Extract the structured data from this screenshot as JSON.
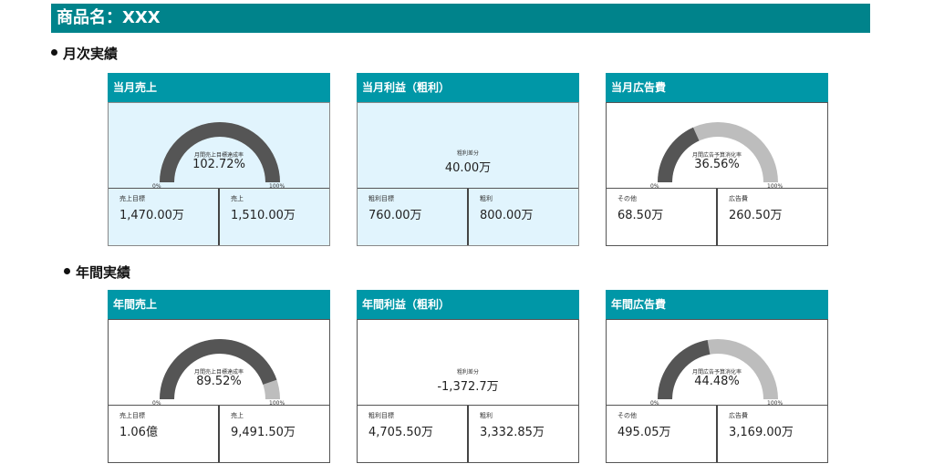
{
  "header": {
    "title": "商品名：XXX"
  },
  "sections": {
    "monthly": "月次実績",
    "annual": "年間実績"
  },
  "colors": {
    "title_bar": "#00838b",
    "card_header": "#0097a7",
    "gauge_fill": "#555555",
    "gauge_track": "#bdbdbd",
    "shaded_panel": "#e1f4fd"
  },
  "cards": {
    "monthly_sales": {
      "title": "当月売上",
      "gauge": {
        "caption": "月間売上目標達成率",
        "value": "102.72%",
        "ratio": 1.0,
        "min_label": "0%",
        "max_label": "100%"
      },
      "cells": [
        {
          "label": "売上目標",
          "value": "1,470.00万"
        },
        {
          "label": "売上",
          "value": "1,510.00万"
        }
      ]
    },
    "monthly_profit": {
      "title": "当月利益（粗利）",
      "summary": {
        "caption": "粗利差分",
        "value": "40.00万"
      },
      "cells": [
        {
          "label": "粗利目標",
          "value": "760.00万"
        },
        {
          "label": "粗利",
          "value": "800.00万"
        }
      ]
    },
    "monthly_ads": {
      "title": "当月広告費",
      "gauge": {
        "caption": "月間広告予算消化率",
        "value": "36.56%",
        "ratio": 0.3656,
        "min_label": "0%",
        "max_label": "100%"
      },
      "cells": [
        {
          "label": "その他",
          "value": "68.50万"
        },
        {
          "label": "広告費",
          "value": "260.50万"
        }
      ]
    },
    "annual_sales": {
      "title": "年間売上",
      "gauge": {
        "caption": "月間売上目標達成率",
        "value": "89.52%",
        "ratio": 0.8952,
        "min_label": "0%",
        "max_label": "100%"
      },
      "cells": [
        {
          "label": "売上目標",
          "value": "1.06億"
        },
        {
          "label": "売上",
          "value": "9,491.50万"
        }
      ]
    },
    "annual_profit": {
      "title": "年間利益（粗利）",
      "summary": {
        "caption": "粗利差分",
        "value": "-1,372.7万"
      },
      "cells": [
        {
          "label": "粗利目標",
          "value": "4,705.50万"
        },
        {
          "label": "粗利",
          "value": "3,332.85万"
        }
      ]
    },
    "annual_ads": {
      "title": "年間広告費",
      "gauge": {
        "caption": "月間広告予算消化率",
        "value": "44.48%",
        "ratio": 0.4448,
        "min_label": "0%",
        "max_label": "100%"
      },
      "cells": [
        {
          "label": "その他",
          "value": "495.05万"
        },
        {
          "label": "広告費",
          "value": "3,169.00万"
        }
      ]
    }
  }
}
